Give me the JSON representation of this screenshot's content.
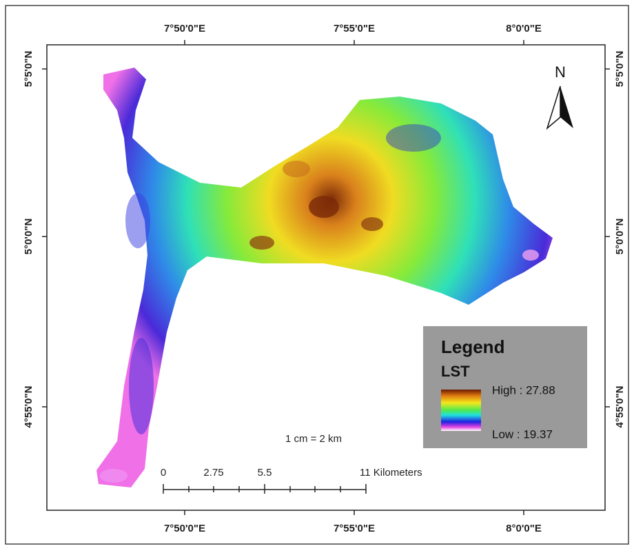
{
  "axes": {
    "top": [
      "7°50'0\"E",
      "7°55'0\"E",
      "8°0'0\"E"
    ],
    "bottom": [
      "7°50'0\"E",
      "7°55'0\"E",
      "8°0'0\"E"
    ],
    "left": [
      "5°5'0\"N",
      "5°0'0\"N",
      "4°55'0\"N"
    ],
    "right": [
      "5°5'0\"N",
      "5°0'0\"N",
      "4°55'0\"N"
    ]
  },
  "north": "N",
  "legend": {
    "title": "Legend",
    "layer": "LST",
    "high": "High : 27.88",
    "low": "Low : 19.37"
  },
  "scale": {
    "ratio": "1 cm = 2 km",
    "labels": [
      "0",
      "2.75",
      "5.5",
      "11 Kilometers"
    ]
  }
}
